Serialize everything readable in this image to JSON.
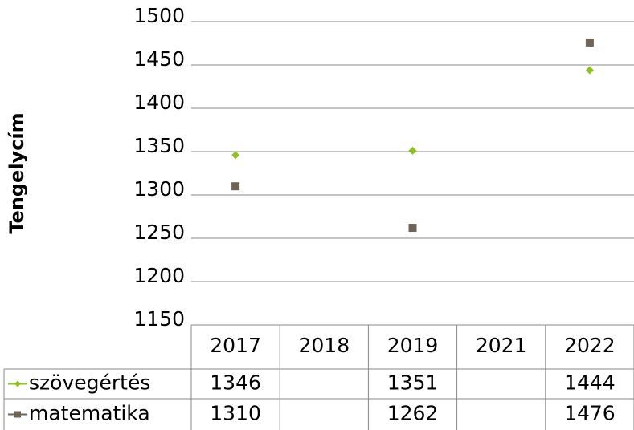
{
  "chart_data": {
    "type": "scatter",
    "y_label": "Tengelycím",
    "categories": [
      "2017",
      "2018",
      "2019",
      "2021",
      "2022"
    ],
    "series": [
      {
        "name": "szövegértés",
        "color": "#8dc21f",
        "marker": "diamond",
        "values": [
          1346,
          null,
          1351,
          null,
          1444
        ]
      },
      {
        "name": "matematika",
        "color": "#6f6556",
        "marker": "square",
        "values": [
          1310,
          null,
          1262,
          null,
          1476
        ]
      }
    ],
    "ylim": [
      1150,
      1500
    ],
    "yticks": [
      1150,
      1200,
      1250,
      1300,
      1350,
      1400,
      1450,
      1500
    ],
    "grid": true,
    "data_table": true
  }
}
